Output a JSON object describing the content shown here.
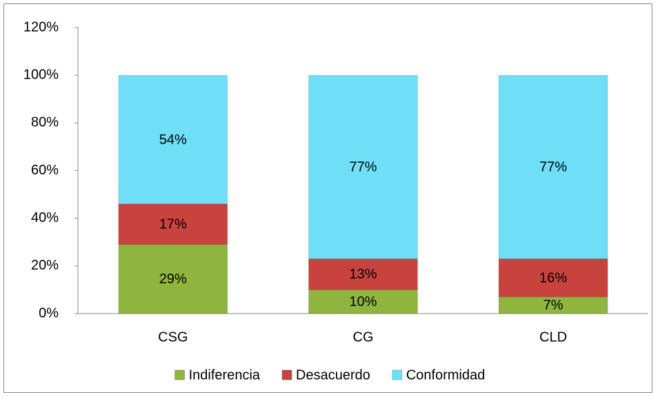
{
  "chart_data": {
    "type": "stacked_bar",
    "categories": [
      "CSG",
      "CG",
      "CLD"
    ],
    "series": [
      {
        "name": "Indiferencia",
        "color": "#8fb53e",
        "values": [
          29,
          10,
          7
        ],
        "value_labels": [
          "29%",
          "10%",
          "7%"
        ]
      },
      {
        "name": "Desacuerdo",
        "color": "#c9433e",
        "values": [
          17,
          13,
          16
        ],
        "value_labels": [
          "17%",
          "13%",
          "16%"
        ]
      },
      {
        "name": "Conformidad",
        "color": "#6fdff7",
        "values": [
          54,
          77,
          77
        ],
        "value_labels": [
          "54%",
          "77%",
          "77%"
        ]
      }
    ],
    "ylim": [
      0,
      120
    ],
    "yticks": [
      {
        "value": 0,
        "label": "0%"
      },
      {
        "value": 20,
        "label": "20%"
      },
      {
        "value": 40,
        "label": "40%"
      },
      {
        "value": 60,
        "label": "60%"
      },
      {
        "value": 80,
        "label": "80%"
      },
      {
        "value": 100,
        "label": "100%"
      },
      {
        "value": 120,
        "label": "120%"
      }
    ],
    "grid": false,
    "legend": "bottom"
  }
}
